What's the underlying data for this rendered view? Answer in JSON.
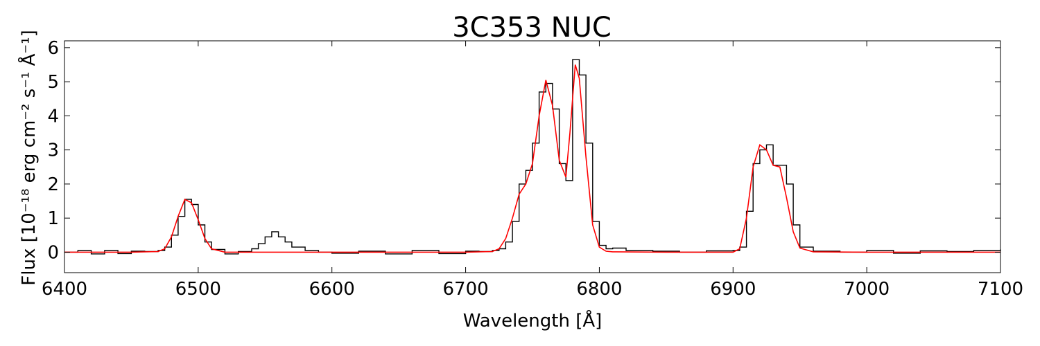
{
  "chart_data": {
    "type": "line",
    "title": "3C353 NUC",
    "xlabel": "Wavelength [Å]",
    "ylabel": "Flux [10⁻¹⁸ erg cm⁻² s⁻¹ Å⁻¹]",
    "xlim": [
      6400,
      7100
    ],
    "ylim": [
      -0.6,
      6.2
    ],
    "xticks": [
      6400,
      6500,
      6600,
      6700,
      6800,
      6900,
      7000,
      7100
    ],
    "yticks": [
      0,
      1,
      2,
      3,
      4,
      5,
      6
    ],
    "grid": false,
    "series": [
      {
        "style": "step",
        "color": "#000000",
        "x": [
          6400,
          6410,
          6420,
          6430,
          6440,
          6450,
          6460,
          6470,
          6475,
          6480,
          6485,
          6490,
          6495,
          6500,
          6505,
          6510,
          6520,
          6530,
          6540,
          6545,
          6550,
          6555,
          6560,
          6565,
          6570,
          6580,
          6590,
          6600,
          6620,
          6640,
          6660,
          6680,
          6700,
          6710,
          6720,
          6725,
          6730,
          6735,
          6740,
          6745,
          6750,
          6755,
          6760,
          6765,
          6770,
          6775,
          6780,
          6785,
          6790,
          6795,
          6800,
          6805,
          6810,
          6820,
          6840,
          6860,
          6880,
          6900,
          6905,
          6910,
          6915,
          6920,
          6925,
          6930,
          6935,
          6940,
          6945,
          6950,
          6960,
          6980,
          7000,
          7020,
          7040,
          7060,
          7080,
          7100
        ],
        "y": [
          0.0,
          0.05,
          -0.05,
          0.05,
          -0.04,
          0.03,
          0.02,
          0.05,
          0.15,
          0.5,
          1.05,
          1.55,
          1.4,
          0.8,
          0.3,
          0.08,
          -0.05,
          0.02,
          0.1,
          0.25,
          0.45,
          0.6,
          0.45,
          0.3,
          0.15,
          0.05,
          0.0,
          -0.03,
          0.03,
          -0.05,
          0.05,
          -0.04,
          0.03,
          0.02,
          0.05,
          0.1,
          0.3,
          0.9,
          2.0,
          2.4,
          3.2,
          4.7,
          4.95,
          4.2,
          2.6,
          2.1,
          5.65,
          5.2,
          3.2,
          0.9,
          0.2,
          0.1,
          0.12,
          0.05,
          0.03,
          0.0,
          0.04,
          0.05,
          0.15,
          1.2,
          2.6,
          3.0,
          3.15,
          2.55,
          2.55,
          2.0,
          0.8,
          0.15,
          0.03,
          0.0,
          0.05,
          -0.03,
          0.04,
          0.02,
          0.05,
          0.08
        ]
      },
      {
        "style": "line",
        "color": "#ff0000",
        "x": [
          6400,
          6450,
          6470,
          6475,
          6480,
          6485,
          6490,
          6495,
          6500,
          6505,
          6510,
          6520,
          6600,
          6700,
          6720,
          6725,
          6730,
          6735,
          6740,
          6745,
          6750,
          6755,
          6760,
          6765,
          6770,
          6775,
          6778,
          6782,
          6785,
          6790,
          6795,
          6800,
          6805,
          6810,
          6850,
          6900,
          6905,
          6910,
          6915,
          6920,
          6925,
          6930,
          6935,
          6940,
          6945,
          6950,
          6960,
          7000,
          7100
        ],
        "y": [
          0,
          0,
          0.02,
          0.1,
          0.45,
          1.05,
          1.55,
          1.45,
          0.95,
          0.4,
          0.1,
          0.0,
          0.0,
          0.0,
          0.02,
          0.1,
          0.4,
          1.0,
          1.7,
          2.0,
          2.6,
          4.0,
          5.05,
          4.3,
          2.7,
          2.2,
          3.5,
          5.5,
          5.1,
          2.8,
          0.8,
          0.15,
          0.03,
          0.01,
          0.0,
          0.0,
          0.1,
          1.0,
          2.5,
          3.15,
          3.0,
          2.55,
          2.5,
          1.6,
          0.6,
          0.12,
          0.01,
          0.0,
          0.0
        ]
      }
    ]
  }
}
